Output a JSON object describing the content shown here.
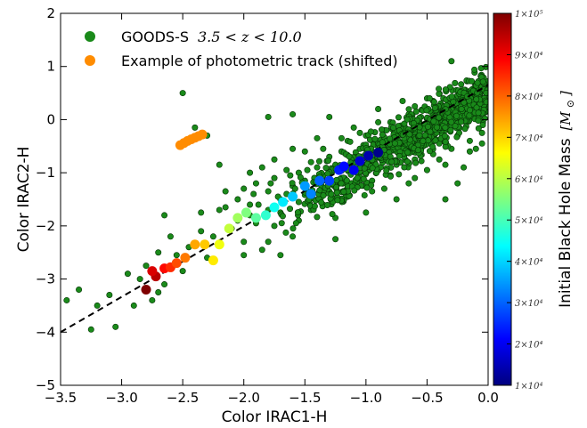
{
  "colors": {
    "data_points": "#1a8a1a",
    "data_points_edge": "#063306",
    "track_shifted": "#ff8c00",
    "fit_line": "#000000",
    "colormap": [
      "#00007f",
      "#0000ff",
      "#007fff",
      "#00ffff",
      "#7fff7f",
      "#ffff00",
      "#ff7f00",
      "#ff0000",
      "#7f0000"
    ]
  },
  "legend": {
    "entries": [
      {
        "label": "GOODS-S",
        "math": "3.5 < z < 10.0",
        "color": "#1a8a1a"
      },
      {
        "label": "Example of photometric track (shifted)",
        "math": "",
        "color": "#ff8c00"
      }
    ]
  },
  "colorbar": {
    "title": "Initial Black Hole Mass",
    "unit": "[M",
    "unit_sub": "⊙",
    "unit_close": "]",
    "min_mass": 10000,
    "max_mass": 100000,
    "ticks": [
      {
        "value": 100000,
        "label": "1×10⁵"
      },
      {
        "value": 90000,
        "label": "9×10⁴"
      },
      {
        "value": 80000,
        "label": "8×10⁴"
      },
      {
        "value": 70000,
        "label": "7×10⁴"
      },
      {
        "value": 60000,
        "label": "6×10⁴"
      },
      {
        "value": 50000,
        "label": "5×10⁴"
      },
      {
        "value": 40000,
        "label": "4×10⁴"
      },
      {
        "value": 30000,
        "label": "3×10⁴"
      },
      {
        "value": 20000,
        "label": "2×10⁴"
      },
      {
        "value": 10000,
        "label": "1×10⁴"
      }
    ]
  },
  "chart_data": {
    "type": "scatter",
    "xlabel": "Color IRAC1-H",
    "ylabel": "Color IRAC2-H",
    "xlim": [
      -3.5,
      0.0
    ],
    "ylim": [
      -5,
      2
    ],
    "xticks": [
      -3.5,
      -3.0,
      -2.5,
      -2.0,
      -1.5,
      -1.0,
      -0.5,
      0.0
    ],
    "xtick_labels": [
      "−3.5",
      "−3.0",
      "−2.5",
      "−2.0",
      "−1.5",
      "−1.0",
      "−0.5",
      "0.0"
    ],
    "yticks": [
      -5,
      -4,
      -3,
      -2,
      -1,
      0,
      1,
      2
    ],
    "ytick_labels": [
      "−5",
      "−4",
      "−3",
      "−2",
      "−1",
      "0",
      "1",
      "2"
    ],
    "grid": false,
    "legend_position": "top-left",
    "fit_line": {
      "style": "dashed",
      "x": [
        -3.5,
        0.0
      ],
      "y": [
        -4.0,
        0.65
      ]
    },
    "goods_s_sample": [
      [
        -3.45,
        -3.4
      ],
      [
        -3.35,
        -3.2
      ],
      [
        -3.25,
        -3.95
      ],
      [
        -3.2,
        -3.5
      ],
      [
        -3.1,
        -3.3
      ],
      [
        -3.05,
        -3.9
      ],
      [
        -2.95,
        -2.9
      ],
      [
        -2.9,
        -3.5
      ],
      [
        -2.85,
        -3.0
      ],
      [
        -2.8,
        -2.75
      ],
      [
        -2.75,
        -3.4
      ],
      [
        -2.7,
        -2.5
      ],
      [
        -2.65,
        -3.1
      ],
      [
        -2.6,
        -2.2
      ],
      [
        -2.55,
        -2.55
      ],
      [
        -2.5,
        0.5
      ],
      [
        -2.4,
        -0.15
      ],
      [
        -2.45,
        -2.4
      ],
      [
        -2.35,
        -2.1
      ],
      [
        -2.3,
        -0.3
      ],
      [
        -2.25,
        -2.2
      ],
      [
        -2.2,
        -0.85
      ],
      [
        -2.2,
        -1.7
      ],
      [
        -2.15,
        -1.65
      ],
      [
        -2.1,
        -2.05
      ],
      [
        -2.05,
        -1.5
      ],
      [
        -2.05,
        -1.9
      ],
      [
        -2.0,
        -1.3
      ],
      [
        -2.0,
        -2.3
      ],
      [
        -1.95,
        -1.6
      ],
      [
        -1.95,
        -1.8
      ],
      [
        -1.9,
        -1.2
      ],
      [
        -1.9,
        -1.95
      ],
      [
        -1.85,
        -0.9
      ],
      [
        -1.85,
        -2.45
      ],
      [
        -1.8,
        -1.35
      ],
      [
        -1.8,
        -1.7
      ],
      [
        -1.75,
        -1.1
      ],
      [
        -1.75,
        -2.0
      ],
      [
        -1.7,
        -1.5
      ],
      [
        -1.7,
        -1.75
      ],
      [
        -1.65,
        -0.95
      ],
      [
        -1.65,
        -1.4
      ],
      [
        -1.6,
        -1.25
      ],
      [
        -1.6,
        -2.2
      ],
      [
        -1.55,
        -1.0
      ],
      [
        -1.55,
        -1.55
      ],
      [
        -1.5,
        -0.6
      ],
      [
        -1.5,
        -1.15
      ],
      [
        -1.45,
        -0.8
      ],
      [
        -1.45,
        -1.45
      ],
      [
        -1.4,
        -0.9
      ],
      [
        -1.4,
        -1.2
      ],
      [
        -1.35,
        -0.55
      ],
      [
        -1.35,
        -1.05
      ],
      [
        -1.3,
        -0.7
      ],
      [
        -1.3,
        -1.35
      ],
      [
        -1.25,
        -0.85
      ],
      [
        -1.25,
        -2.25
      ],
      [
        -1.2,
        -0.6
      ],
      [
        -1.2,
        -1.1
      ],
      [
        -1.15,
        -0.4
      ],
      [
        -1.15,
        -0.95
      ],
      [
        -1.1,
        -0.75
      ],
      [
        -1.1,
        -1.25
      ],
      [
        -1.05,
        -0.55
      ],
      [
        -1.05,
        -1.0
      ],
      [
        -1.0,
        -0.3
      ],
      [
        -1.0,
        -0.85
      ],
      [
        -0.95,
        -0.6
      ],
      [
        -0.95,
        -1.15
      ],
      [
        -0.9,
        -0.45
      ],
      [
        -0.9,
        -0.95
      ],
      [
        -0.85,
        -0.2
      ],
      [
        -0.85,
        -0.75
      ],
      [
        -0.8,
        -0.5
      ],
      [
        -0.8,
        -1.05
      ],
      [
        -0.75,
        -0.35
      ],
      [
        -0.75,
        -0.85
      ],
      [
        -0.7,
        -0.15
      ],
      [
        -0.7,
        -0.65
      ],
      [
        -0.65,
        -0.45
      ],
      [
        -0.65,
        -1.2
      ],
      [
        -0.6,
        -0.25
      ],
      [
        -0.6,
        -0.75
      ],
      [
        -0.55,
        0.05
      ],
      [
        -0.55,
        -0.55
      ],
      [
        -0.5,
        -0.35
      ],
      [
        -0.5,
        -0.95
      ],
      [
        -0.45,
        -0.1
      ],
      [
        -0.45,
        -0.65
      ],
      [
        -0.4,
        0.15
      ],
      [
        -0.4,
        -0.45
      ],
      [
        -0.35,
        -0.2
      ],
      [
        -0.35,
        -0.85
      ],
      [
        -0.3,
        0.1
      ],
      [
        -0.3,
        -0.55
      ],
      [
        -0.25,
        -0.3
      ],
      [
        -0.25,
        -1.2
      ],
      [
        -0.2,
        0.0
      ],
      [
        -0.15,
        -0.4
      ],
      [
        -0.1,
        0.2
      ],
      [
        -0.05,
        -0.25
      ],
      [
        -0.02,
        0.15
      ],
      [
        -0.3,
        1.1
      ],
      [
        -0.5,
        0.4
      ],
      [
        -0.7,
        0.35
      ],
      [
        -0.9,
        0.2
      ],
      [
        -1.3,
        0.05
      ],
      [
        -1.6,
        0.1
      ],
      [
        -1.8,
        0.05
      ],
      [
        -0.2,
        -0.9
      ],
      [
        -0.1,
        -0.55
      ],
      [
        -0.35,
        -1.5
      ],
      [
        -0.75,
        -1.5
      ],
      [
        -1.0,
        -1.75
      ],
      [
        -1.25,
        -1.85
      ],
      [
        -1.7,
        -2.55
      ],
      [
        -2.0,
        -2.55
      ],
      [
        -2.5,
        -2.85
      ],
      [
        -2.7,
        -3.25
      ],
      [
        -2.55,
        -2.7
      ],
      [
        -2.3,
        -2.6
      ],
      [
        -1.8,
        -2.3
      ],
      [
        -1.55,
        -1.9
      ],
      [
        -1.45,
        -1.7
      ],
      [
        -1.35,
        -1.6
      ],
      [
        -1.15,
        -1.45
      ],
      [
        -0.95,
        -1.35
      ],
      [
        -0.85,
        -1.3
      ],
      [
        -0.6,
        -1.1
      ],
      [
        -0.4,
        -0.75
      ],
      [
        -0.15,
        -0.6
      ],
      [
        -0.05,
        -0.45
      ],
      [
        -0.6,
        0.25
      ],
      [
        -0.8,
        -0.05
      ],
      [
        -1.1,
        -0.15
      ],
      [
        -1.4,
        -0.35
      ],
      [
        -1.6,
        -0.55
      ],
      [
        -1.75,
        -0.75
      ],
      [
        -1.95,
        -1.0
      ],
      [
        -2.15,
        -1.35
      ],
      [
        -2.35,
        -1.75
      ],
      [
        -2.65,
        -1.8
      ],
      [
        -0.45,
        0.35
      ],
      [
        -0.25,
        0.25
      ],
      [
        -0.65,
        0.1
      ],
      [
        -0.9,
        -0.05
      ],
      [
        -1.05,
        -0.25
      ],
      [
        -1.2,
        -0.35
      ],
      [
        -0.58,
        -0.15
      ],
      [
        -0.72,
        -0.28
      ],
      [
        -0.88,
        -0.38
      ],
      [
        -1.02,
        -0.48
      ],
      [
        -1.18,
        -0.62
      ],
      [
        -1.32,
        -0.78
      ],
      [
        -1.48,
        -0.95
      ],
      [
        -1.62,
        -1.05
      ],
      [
        -1.78,
        -1.2
      ],
      [
        -1.92,
        -1.4
      ],
      [
        -0.52,
        -0.42
      ],
      [
        -0.68,
        -0.55
      ],
      [
        -0.82,
        -0.68
      ],
      [
        -0.98,
        -0.78
      ],
      [
        -1.12,
        -0.9
      ],
      [
        -1.28,
        -1.0
      ],
      [
        -1.42,
        -1.1
      ],
      [
        -1.58,
        -1.3
      ],
      [
        -1.72,
        -1.45
      ],
      [
        -1.88,
        -1.6
      ]
    ],
    "photometric_track_shifted": [
      [
        -2.52,
        -0.48
      ],
      [
        -2.49,
        -0.44
      ],
      [
        -2.46,
        -0.4
      ],
      [
        -2.43,
        -0.37
      ],
      [
        -2.4,
        -0.34
      ],
      [
        -2.37,
        -0.31
      ],
      [
        -2.34,
        -0.28
      ]
    ],
    "mass_track": [
      {
        "x": -2.8,
        "y": -3.2,
        "mass": 100000
      },
      {
        "x": -2.72,
        "y": -2.95,
        "mass": 95000
      },
      {
        "x": -2.75,
        "y": -2.85,
        "mass": 92000
      },
      {
        "x": -2.65,
        "y": -2.8,
        "mass": 88000
      },
      {
        "x": -2.6,
        "y": -2.78,
        "mass": 85000
      },
      {
        "x": -2.55,
        "y": -2.7,
        "mass": 82000
      },
      {
        "x": -2.48,
        "y": -2.6,
        "mass": 78000
      },
      {
        "x": -2.4,
        "y": -2.35,
        "mass": 74000
      },
      {
        "x": -2.32,
        "y": -2.35,
        "mass": 71000
      },
      {
        "x": -2.25,
        "y": -2.65,
        "mass": 68000
      },
      {
        "x": -2.2,
        "y": -2.35,
        "mass": 65000
      },
      {
        "x": -2.12,
        "y": -2.05,
        "mass": 61000
      },
      {
        "x": -2.05,
        "y": -1.85,
        "mass": 58000
      },
      {
        "x": -1.98,
        "y": -1.75,
        "mass": 55000
      },
      {
        "x": -1.9,
        "y": -1.85,
        "mass": 52000
      },
      {
        "x": -1.82,
        "y": -1.8,
        "mass": 48000
      },
      {
        "x": -1.75,
        "y": -1.65,
        "mass": 45000
      },
      {
        "x": -1.68,
        "y": -1.55,
        "mass": 42000
      },
      {
        "x": -1.6,
        "y": -1.45,
        "mass": 39000
      },
      {
        "x": -1.5,
        "y": -1.25,
        "mass": 35000
      },
      {
        "x": -1.45,
        "y": -1.4,
        "mass": 33000
      },
      {
        "x": -1.38,
        "y": -1.15,
        "mass": 30000
      },
      {
        "x": -1.3,
        "y": -1.15,
        "mass": 27000
      },
      {
        "x": -1.22,
        "y": -0.95,
        "mass": 24000
      },
      {
        "x": -1.18,
        "y": -0.88,
        "mass": 22000
      },
      {
        "x": -1.1,
        "y": -0.95,
        "mass": 20000
      },
      {
        "x": -1.05,
        "y": -0.78,
        "mass": 17000
      },
      {
        "x": -0.98,
        "y": -0.68,
        "mass": 14000
      },
      {
        "x": -0.9,
        "y": -0.62,
        "mass": 11000
      }
    ]
  }
}
